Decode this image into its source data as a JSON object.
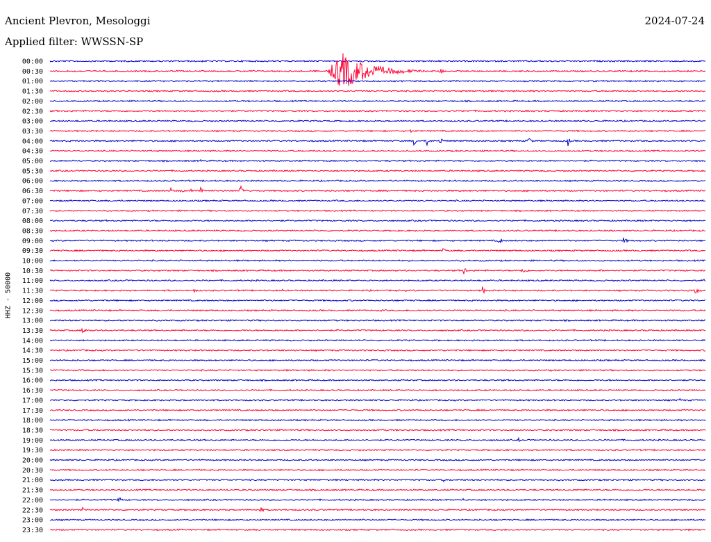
{
  "header": {
    "station": "Ancient Plevron, Mesologgi",
    "date": "2024-07-24",
    "filter": "Applied filter: WWSSN-SP"
  },
  "chart_data": {
    "type": "line",
    "title": "Ancient Plevron, Mesologgi",
    "ylabel": "HHZ - 50000",
    "trace_colors": [
      "#0000cc",
      "#ff0033"
    ],
    "rows": [
      {
        "time": "00:00",
        "events": []
      },
      {
        "time": "00:30",
        "events": [
          {
            "x": 0.445,
            "amp": 28,
            "dur": 0.09
          },
          {
            "x": 0.595,
            "amp": 5,
            "dur": 0.012
          },
          {
            "x": 0.31,
            "amp": 2,
            "dur": 0.004
          },
          {
            "x": 0.93,
            "amp": 2,
            "dur": 0.004
          }
        ]
      },
      {
        "time": "01:00",
        "events": []
      },
      {
        "time": "01:30",
        "events": []
      },
      {
        "time": "02:00",
        "events": [
          {
            "x": 0.81,
            "amp": 2,
            "dur": 0.004
          }
        ]
      },
      {
        "time": "02:30",
        "events": []
      },
      {
        "time": "03:00",
        "events": []
      },
      {
        "time": "03:30",
        "events": [
          {
            "x": 0.55,
            "amp": 3,
            "dur": 0.006
          }
        ]
      },
      {
        "time": "04:00",
        "events": [
          {
            "x": 0.555,
            "amp": 8,
            "dur": 0.008
          },
          {
            "x": 0.575,
            "amp": 9,
            "dur": 0.008
          },
          {
            "x": 0.595,
            "amp": 8,
            "dur": 0.008
          },
          {
            "x": 0.73,
            "amp": 8,
            "dur": 0.008
          },
          {
            "x": 0.79,
            "amp": 10,
            "dur": 0.005
          }
        ]
      },
      {
        "time": "04:30",
        "events": []
      },
      {
        "time": "05:00",
        "events": [
          {
            "x": 0.23,
            "amp": 2,
            "dur": 0.01
          }
        ]
      },
      {
        "time": "05:30",
        "events": []
      },
      {
        "time": "06:00",
        "events": []
      },
      {
        "time": "06:30",
        "events": [
          {
            "x": 0.185,
            "amp": 9,
            "dur": 0.005
          },
          {
            "x": 0.2,
            "amp": 7,
            "dur": 0.005
          },
          {
            "x": 0.215,
            "amp": 6,
            "dur": 0.004
          },
          {
            "x": 0.23,
            "amp": 8,
            "dur": 0.008
          },
          {
            "x": 0.29,
            "amp": 12,
            "dur": 0.006
          },
          {
            "x": 0.305,
            "amp": 6,
            "dur": 0.004
          }
        ]
      },
      {
        "time": "07:00",
        "events": []
      },
      {
        "time": "07:30",
        "events": [
          {
            "x": 0.985,
            "amp": 2,
            "dur": 0.004
          }
        ]
      },
      {
        "time": "08:00",
        "events": []
      },
      {
        "time": "08:30",
        "events": [
          {
            "x": 0.61,
            "amp": 2,
            "dur": 0.004
          }
        ]
      },
      {
        "time": "09:00",
        "events": [
          {
            "x": 0.685,
            "amp": 5,
            "dur": 0.012
          },
          {
            "x": 0.875,
            "amp": 5,
            "dur": 0.012
          }
        ]
      },
      {
        "time": "09:30",
        "events": [
          {
            "x": 0.6,
            "amp": 5,
            "dur": 0.006
          }
        ]
      },
      {
        "time": "10:00",
        "events": []
      },
      {
        "time": "10:30",
        "events": [
          {
            "x": 0.63,
            "amp": 9,
            "dur": 0.008
          },
          {
            "x": 0.72,
            "amp": 4,
            "dur": 0.02
          },
          {
            "x": 0.84,
            "amp": 2,
            "dur": 0.01
          }
        ]
      },
      {
        "time": "11:00",
        "events": [
          {
            "x": 0.998,
            "amp": 3,
            "dur": 0.004
          }
        ]
      },
      {
        "time": "11:30",
        "events": [
          {
            "x": 0.22,
            "amp": 4,
            "dur": 0.008
          },
          {
            "x": 0.355,
            "amp": 3,
            "dur": 0.003
          },
          {
            "x": 0.66,
            "amp": 6,
            "dur": 0.008
          },
          {
            "x": 0.985,
            "amp": 5,
            "dur": 0.012
          }
        ]
      },
      {
        "time": "12:00",
        "events": []
      },
      {
        "time": "12:30",
        "events": [
          {
            "x": 0.505,
            "amp": 3,
            "dur": 0.003
          }
        ]
      },
      {
        "time": "13:00",
        "events": []
      },
      {
        "time": "13:30",
        "events": [
          {
            "x": 0.05,
            "amp": 6,
            "dur": 0.01
          }
        ]
      },
      {
        "time": "14:00",
        "events": []
      },
      {
        "time": "14:30",
        "events": []
      },
      {
        "time": "15:00",
        "events": []
      },
      {
        "time": "15:30",
        "events": []
      },
      {
        "time": "16:00",
        "events": []
      },
      {
        "time": "16:30",
        "events": []
      },
      {
        "time": "17:00",
        "events": [
          {
            "x": 0.96,
            "amp": 3,
            "dur": 0.01
          }
        ]
      },
      {
        "time": "17:30",
        "events": []
      },
      {
        "time": "18:00",
        "events": [
          {
            "x": 0.12,
            "amp": 2,
            "dur": 0.004
          }
        ]
      },
      {
        "time": "18:30",
        "events": []
      },
      {
        "time": "19:00",
        "events": [
          {
            "x": 0.715,
            "amp": 4,
            "dur": 0.004
          }
        ]
      },
      {
        "time": "19:30",
        "events": []
      },
      {
        "time": "20:00",
        "events": [
          {
            "x": 0.835,
            "amp": 2,
            "dur": 0.006
          }
        ]
      },
      {
        "time": "20:30",
        "events": []
      },
      {
        "time": "21:00",
        "events": [
          {
            "x": 0.6,
            "amp": 3,
            "dur": 0.006
          }
        ]
      },
      {
        "time": "21:30",
        "events": [
          {
            "x": 0.95,
            "amp": 3,
            "dur": 0.006
          }
        ]
      },
      {
        "time": "22:00",
        "events": [
          {
            "x": 0.105,
            "amp": 9,
            "dur": 0.006
          },
          {
            "x": 0.63,
            "amp": 3,
            "dur": 0.003
          },
          {
            "x": 0.845,
            "amp": 3,
            "dur": 0.004
          }
        ]
      },
      {
        "time": "22:30",
        "events": [
          {
            "x": 0.05,
            "amp": 4,
            "dur": 0.006
          },
          {
            "x": 0.32,
            "amp": 5,
            "dur": 0.012
          }
        ]
      },
      {
        "time": "23:00",
        "events": [
          {
            "x": 0.165,
            "amp": 2,
            "dur": 0.004
          }
        ]
      },
      {
        "time": "23:30",
        "events": []
      }
    ]
  }
}
